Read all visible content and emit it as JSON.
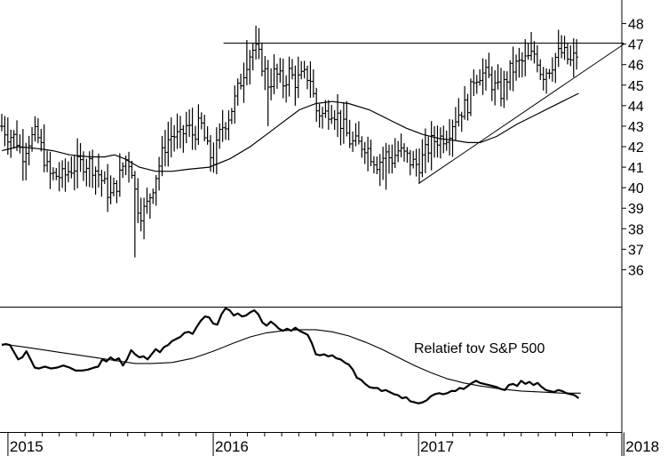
{
  "chart_data": [
    {
      "type": "ohlc",
      "panel": "price",
      "ylim": [
        35.5,
        48.5
      ],
      "yticks": [
        36,
        37,
        38,
        39,
        40,
        41,
        42,
        43,
        44,
        45,
        46,
        47,
        48
      ],
      "xlim": [
        2014.97,
        2017.99
      ],
      "xticks": [
        {
          "x": 2015,
          "label": "2015"
        },
        {
          "x": 2016,
          "label": "2016"
        },
        {
          "x": 2017,
          "label": "2017"
        },
        {
          "x": 2018,
          "label": "2018"
        }
      ],
      "weekly_close_anchors": [
        [
          2014.97,
          43.0
        ],
        [
          2015.0,
          42.6
        ],
        [
          2015.04,
          42.4
        ],
        [
          2015.07,
          41.6
        ],
        [
          2015.1,
          42.3
        ],
        [
          2015.14,
          42.6
        ],
        [
          2015.17,
          41.7
        ],
        [
          2015.2,
          40.6
        ],
        [
          2015.24,
          40.6
        ],
        [
          2015.27,
          40.5
        ],
        [
          2015.3,
          40.9
        ],
        [
          2015.34,
          41.1
        ],
        [
          2015.37,
          41.2
        ],
        [
          2015.4,
          41.2
        ],
        [
          2015.44,
          40.7
        ],
        [
          2015.47,
          40.1
        ],
        [
          2015.5,
          39.6
        ],
        [
          2015.54,
          40.4
        ],
        [
          2015.57,
          41.4
        ],
        [
          2015.6,
          41.2
        ],
        [
          2015.62,
          39.7
        ],
        [
          2015.64,
          38.8
        ],
        [
          2015.67,
          38.9
        ],
        [
          2015.7,
          39.9
        ],
        [
          2015.73,
          40.9
        ],
        [
          2015.77,
          42.2
        ],
        [
          2015.8,
          42.6
        ],
        [
          2015.84,
          42.4
        ],
        [
          2015.87,
          43.0
        ],
        [
          2015.9,
          42.6
        ],
        [
          2015.94,
          43.1
        ],
        [
          2015.97,
          41.9
        ],
        [
          2016.0,
          41.3
        ],
        [
          2016.04,
          42.9
        ],
        [
          2016.07,
          43.4
        ],
        [
          2016.1,
          44.1
        ],
        [
          2016.14,
          45.4
        ],
        [
          2016.17,
          46.4
        ],
        [
          2016.2,
          46.8
        ],
        [
          2016.24,
          46.0
        ],
        [
          2016.27,
          45.0
        ],
        [
          2016.3,
          45.6
        ],
        [
          2016.34,
          45.1
        ],
        [
          2016.37,
          45.6
        ],
        [
          2016.4,
          45.2
        ],
        [
          2016.44,
          45.4
        ],
        [
          2016.47,
          45.5
        ],
        [
          2016.5,
          43.8
        ],
        [
          2016.54,
          43.5
        ],
        [
          2016.57,
          43.9
        ],
        [
          2016.6,
          43.6
        ],
        [
          2016.64,
          42.8
        ],
        [
          2016.67,
          42.2
        ],
        [
          2016.7,
          42.1
        ],
        [
          2016.74,
          42.1
        ],
        [
          2016.77,
          41.6
        ],
        [
          2016.8,
          41.2
        ],
        [
          2016.84,
          41.6
        ],
        [
          2016.87,
          41.4
        ],
        [
          2016.9,
          41.8
        ],
        [
          2016.94,
          41.5
        ],
        [
          2016.97,
          41.2
        ],
        [
          2017.0,
          41.1
        ],
        [
          2017.04,
          41.8
        ],
        [
          2017.07,
          42.3
        ],
        [
          2017.1,
          42.4
        ],
        [
          2017.14,
          42.6
        ],
        [
          2017.17,
          43.3
        ],
        [
          2017.2,
          43.7
        ],
        [
          2017.24,
          44.1
        ],
        [
          2017.27,
          45.4
        ],
        [
          2017.3,
          45.6
        ],
        [
          2017.34,
          45.4
        ],
        [
          2017.37,
          44.9
        ],
        [
          2017.4,
          44.6
        ],
        [
          2017.44,
          45.6
        ],
        [
          2017.47,
          45.9
        ],
        [
          2017.5,
          46.1
        ],
        [
          2017.54,
          46.3
        ],
        [
          2017.57,
          46.6
        ],
        [
          2017.6,
          45.5
        ],
        [
          2017.64,
          45.9
        ],
        [
          2017.67,
          46.4
        ],
        [
          2017.7,
          46.6
        ],
        [
          2017.74,
          46.1
        ],
        [
          2017.77,
          46.5
        ]
      ],
      "moving_average": [
        [
          2014.97,
          41.8
        ],
        [
          2015.05,
          42.0
        ],
        [
          2015.15,
          41.9
        ],
        [
          2015.22,
          41.8
        ],
        [
          2015.3,
          41.6
        ],
        [
          2015.4,
          41.5
        ],
        [
          2015.47,
          41.5
        ],
        [
          2015.52,
          41.6
        ],
        [
          2015.57,
          41.4
        ],
        [
          2015.64,
          41.0
        ],
        [
          2015.72,
          40.8
        ],
        [
          2015.8,
          40.8
        ],
        [
          2015.88,
          40.9
        ],
        [
          2015.98,
          41.0
        ],
        [
          2016.08,
          41.4
        ],
        [
          2016.18,
          42.0
        ],
        [
          2016.26,
          42.6
        ],
        [
          2016.34,
          43.2
        ],
        [
          2016.42,
          43.8
        ],
        [
          2016.5,
          44.1
        ],
        [
          2016.58,
          44.2
        ],
        [
          2016.66,
          44.1
        ],
        [
          2016.76,
          43.8
        ],
        [
          2016.86,
          43.3
        ],
        [
          2016.94,
          42.9
        ],
        [
          2017.02,
          42.6
        ],
        [
          2017.1,
          42.4
        ],
        [
          2017.18,
          42.3
        ],
        [
          2017.24,
          42.2
        ],
        [
          2017.3,
          42.2
        ],
        [
          2017.38,
          42.5
        ],
        [
          2017.48,
          43.1
        ],
        [
          2017.58,
          43.6
        ],
        [
          2017.66,
          44.0
        ],
        [
          2017.72,
          44.3
        ],
        [
          2017.78,
          44.6
        ]
      ],
      "trendlines": [
        {
          "name": "horizontal resistance",
          "x": [
            2016.05,
            2018.0
          ],
          "y": [
            47.05,
            47.05
          ]
        },
        {
          "name": "rising support",
          "x": [
            2017.0,
            2018.0
          ],
          "y": [
            40.2,
            47.0
          ]
        }
      ]
    },
    {
      "type": "line",
      "panel": "relative",
      "annotation": "Relatief tov S&P 500",
      "ylim": [
        0,
        100
      ],
      "series": [
        {
          "values": [
            [
              2014.97,
              72
            ],
            [
              2014.99,
              73
            ],
            [
              2015.01,
              72
            ],
            [
              2015.03,
              65
            ],
            [
              2015.05,
              58
            ],
            [
              2015.07,
              60
            ],
            [
              2015.09,
              66
            ],
            [
              2015.11,
              58
            ],
            [
              2015.13,
              50
            ],
            [
              2015.15,
              49
            ],
            [
              2015.18,
              51
            ],
            [
              2015.21,
              49
            ],
            [
              2015.24,
              50
            ],
            [
              2015.27,
              52
            ],
            [
              2015.3,
              50
            ],
            [
              2015.33,
              47
            ],
            [
              2015.36,
              47
            ],
            [
              2015.39,
              48
            ],
            [
              2015.42,
              50
            ],
            [
              2015.44,
              51
            ],
            [
              2015.46,
              58
            ],
            [
              2015.48,
              56
            ],
            [
              2015.5,
              60
            ],
            [
              2015.52,
              57
            ],
            [
              2015.54,
              59
            ],
            [
              2015.56,
              52
            ],
            [
              2015.58,
              58
            ],
            [
              2015.6,
              67
            ],
            [
              2015.62,
              63
            ],
            [
              2015.64,
              60
            ],
            [
              2015.66,
              61
            ],
            [
              2015.68,
              58
            ],
            [
              2015.7,
              63
            ],
            [
              2015.72,
              68
            ],
            [
              2015.74,
              65
            ],
            [
              2015.76,
              70
            ],
            [
              2015.78,
              72
            ],
            [
              2015.8,
              76
            ],
            [
              2015.82,
              78
            ],
            [
              2015.84,
              80
            ],
            [
              2015.86,
              84
            ],
            [
              2015.88,
              85
            ],
            [
              2015.9,
              83
            ],
            [
              2015.92,
              90
            ],
            [
              2015.94,
              96
            ],
            [
              2015.96,
              100
            ],
            [
              2015.98,
              99
            ],
            [
              2016.0,
              93
            ],
            [
              2016.02,
              92
            ],
            [
              2016.04,
              102
            ],
            [
              2016.06,
              108
            ],
            [
              2016.08,
              106
            ],
            [
              2016.1,
              101
            ],
            [
              2016.12,
              103
            ],
            [
              2016.14,
              100
            ],
            [
              2016.16,
              101
            ],
            [
              2016.18,
              104
            ],
            [
              2016.2,
              106
            ],
            [
              2016.22,
              102
            ],
            [
              2016.24,
              94
            ],
            [
              2016.26,
              91
            ],
            [
              2016.28,
              95
            ],
            [
              2016.3,
              92
            ],
            [
              2016.32,
              88
            ],
            [
              2016.34,
              86
            ],
            [
              2016.36,
              88
            ],
            [
              2016.38,
              86
            ],
            [
              2016.4,
              89
            ],
            [
              2016.42,
              86
            ],
            [
              2016.44,
              84
            ],
            [
              2016.46,
              82
            ],
            [
              2016.48,
              74
            ],
            [
              2016.5,
              63
            ],
            [
              2016.52,
              62
            ],
            [
              2016.54,
              63
            ],
            [
              2016.56,
              61
            ],
            [
              2016.58,
              62
            ],
            [
              2016.6,
              59
            ],
            [
              2016.62,
              58
            ],
            [
              2016.64,
              55
            ],
            [
              2016.66,
              53
            ],
            [
              2016.68,
              48
            ],
            [
              2016.7,
              40
            ],
            [
              2016.72,
              38
            ],
            [
              2016.74,
              34
            ],
            [
              2016.76,
              31
            ],
            [
              2016.78,
              30
            ],
            [
              2016.8,
              30
            ],
            [
              2016.82,
              27
            ],
            [
              2016.84,
              28
            ],
            [
              2016.86,
              26
            ],
            [
              2016.88,
              24
            ],
            [
              2016.9,
              23
            ],
            [
              2016.92,
              20
            ],
            [
              2016.94,
              21
            ],
            [
              2016.96,
              17
            ],
            [
              2016.98,
              16
            ],
            [
              2017.0,
              15
            ],
            [
              2017.02,
              16
            ],
            [
              2017.04,
              18
            ],
            [
              2017.06,
              22
            ],
            [
              2017.08,
              24
            ],
            [
              2017.1,
              25
            ],
            [
              2017.12,
              24
            ],
            [
              2017.14,
              25
            ],
            [
              2017.16,
              27
            ],
            [
              2017.18,
              27
            ],
            [
              2017.2,
              30
            ],
            [
              2017.22,
              29
            ],
            [
              2017.24,
              32
            ],
            [
              2017.26,
              35
            ],
            [
              2017.28,
              37
            ],
            [
              2017.3,
              35
            ],
            [
              2017.32,
              34
            ],
            [
              2017.34,
              33
            ],
            [
              2017.36,
              32
            ],
            [
              2017.38,
              31
            ],
            [
              2017.4,
              29
            ],
            [
              2017.42,
              28
            ],
            [
              2017.44,
              33
            ],
            [
              2017.46,
              34
            ],
            [
              2017.48,
              32
            ],
            [
              2017.5,
              37
            ],
            [
              2017.52,
              34
            ],
            [
              2017.54,
              36
            ],
            [
              2017.56,
              33
            ],
            [
              2017.58,
              35
            ],
            [
              2017.6,
              31
            ],
            [
              2017.62,
              28
            ],
            [
              2017.64,
              27
            ],
            [
              2017.66,
              26
            ],
            [
              2017.68,
              28
            ],
            [
              2017.7,
              27
            ],
            [
              2017.72,
              25
            ],
            [
              2017.74,
              24
            ],
            [
              2017.76,
              23
            ],
            [
              2017.78,
              20
            ]
          ]
        },
        {
          "values": [
            [
              2014.97,
              73
            ],
            [
              2015.05,
              71
            ],
            [
              2015.15,
              68
            ],
            [
              2015.25,
              65
            ],
            [
              2015.35,
              62
            ],
            [
              2015.45,
              59
            ],
            [
              2015.55,
              56
            ],
            [
              2015.62,
              54
            ],
            [
              2015.7,
              54
            ],
            [
              2015.8,
              55
            ],
            [
              2015.9,
              59
            ],
            [
              2016.0,
              66
            ],
            [
              2016.1,
              74
            ],
            [
              2016.18,
              80
            ],
            [
              2016.26,
              84
            ],
            [
              2016.34,
              86
            ],
            [
              2016.42,
              87
            ],
            [
              2016.5,
              87
            ],
            [
              2016.58,
              85
            ],
            [
              2016.66,
              81
            ],
            [
              2016.74,
              75
            ],
            [
              2016.82,
              68
            ],
            [
              2016.9,
              60
            ],
            [
              2016.98,
              52
            ],
            [
              2017.06,
              45
            ],
            [
              2017.14,
              39
            ],
            [
              2017.22,
              35
            ],
            [
              2017.3,
              32
            ],
            [
              2017.4,
              29
            ],
            [
              2017.5,
              27
            ],
            [
              2017.6,
              26
            ],
            [
              2017.7,
              25
            ],
            [
              2017.79,
              25
            ]
          ]
        }
      ]
    }
  ]
}
